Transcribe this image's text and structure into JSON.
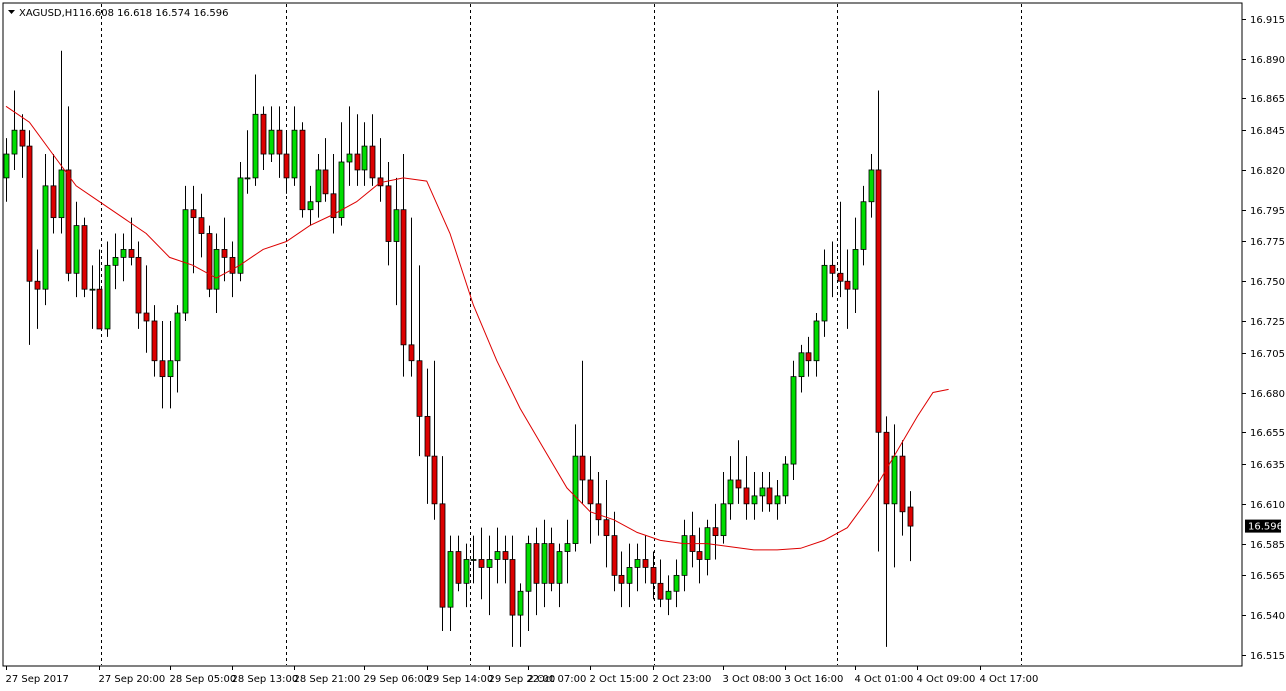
{
  "header": {
    "symbol_label": "XAGUSD,H1",
    "ohlc_label": "16.608 16.618 16.574 16.596"
  },
  "current_price_label": "16.596",
  "colors": {
    "background": "#ffffff",
    "bull": "#00dd00",
    "bear": "#dd0000",
    "wick": "#000000",
    "ma_line": "#dd0000",
    "grid": "#000000",
    "price_tag_bg": "#000000"
  },
  "chart_data": {
    "type": "candlestick",
    "symbol": "XAGUSD",
    "timeframe": "H1",
    "ylim": [
      16.508,
      16.925
    ],
    "y_ticks": [
      16.915,
      16.89,
      16.865,
      16.845,
      16.82,
      16.795,
      16.775,
      16.75,
      16.725,
      16.705,
      16.68,
      16.655,
      16.635,
      16.61,
      16.585,
      16.565,
      16.54,
      16.515
    ],
    "x_tick_labels": [
      {
        "index": 0,
        "label": "27 Sep 2017"
      },
      {
        "index": 12,
        "label": "27 Sep 20:00"
      },
      {
        "index": 21,
        "label": "28 Sep 05:00"
      },
      {
        "index": 29,
        "label": "28 Sep 13:00"
      },
      {
        "index": 37,
        "label": "28 Sep 21:00"
      },
      {
        "index": 46,
        "label": "29 Sep 06:00"
      },
      {
        "index": 54,
        "label": "29 Sep 14:00"
      },
      {
        "index": 62,
        "label": "29 Sep 22:00"
      },
      {
        "index": 67,
        "label": "2 Oct 07:00"
      },
      {
        "index": 75,
        "label": "2 Oct 15:00"
      },
      {
        "index": 83,
        "label": "2 Oct 23:00"
      },
      {
        "index": 92,
        "label": "3 Oct 08:00"
      },
      {
        "index": 100,
        "label": "3 Oct 16:00"
      },
      {
        "index": 109,
        "label": "4 Oct 01:00"
      },
      {
        "index": 117,
        "label": "4 Oct 09:00"
      },
      {
        "index": 125,
        "label": "4 Oct 17:00"
      }
    ],
    "separators": [
      12,
      36,
      60,
      84,
      108,
      132
    ],
    "candles": [
      [
        16.815,
        16.84,
        16.8,
        16.83
      ],
      [
        16.83,
        16.87,
        16.82,
        16.845
      ],
      [
        16.845,
        16.855,
        16.815,
        16.835
      ],
      [
        16.835,
        16.845,
        16.71,
        16.75
      ],
      [
        16.75,
        16.77,
        16.72,
        16.745
      ],
      [
        16.745,
        16.83,
        16.735,
        16.81
      ],
      [
        16.81,
        16.83,
        16.78,
        16.79
      ],
      [
        16.79,
        16.895,
        16.78,
        16.82
      ],
      [
        16.82,
        16.86,
        16.75,
        16.755
      ],
      [
        16.755,
        16.8,
        16.74,
        16.785
      ],
      [
        16.785,
        16.79,
        16.74,
        16.745
      ],
      [
        16.745,
        16.76,
        16.72,
        16.745
      ],
      [
        16.745,
        16.77,
        16.72,
        16.72
      ],
      [
        16.72,
        16.775,
        16.715,
        16.76
      ],
      [
        16.76,
        16.78,
        16.745,
        16.765
      ],
      [
        16.765,
        16.78,
        16.75,
        16.77
      ],
      [
        16.77,
        16.79,
        16.76,
        16.765
      ],
      [
        16.765,
        16.775,
        16.72,
        16.73
      ],
      [
        16.73,
        16.76,
        16.705,
        16.725
      ],
      [
        16.725,
        16.735,
        16.69,
        16.7
      ],
      [
        16.7,
        16.725,
        16.67,
        16.69
      ],
      [
        16.69,
        16.725,
        16.67,
        16.7
      ],
      [
        16.7,
        16.735,
        16.68,
        16.73
      ],
      [
        16.73,
        16.81,
        16.725,
        16.795
      ],
      [
        16.795,
        16.81,
        16.755,
        16.79
      ],
      [
        16.79,
        16.805,
        16.765,
        16.78
      ],
      [
        16.78,
        16.785,
        16.74,
        16.745
      ],
      [
        16.745,
        16.78,
        16.73,
        16.77
      ],
      [
        16.77,
        16.79,
        16.75,
        16.765
      ],
      [
        16.765,
        16.775,
        16.74,
        16.755
      ],
      [
        16.755,
        16.825,
        16.75,
        16.815
      ],
      [
        16.815,
        16.845,
        16.805,
        16.815
      ],
      [
        16.815,
        16.88,
        16.81,
        16.855
      ],
      [
        16.855,
        16.86,
        16.82,
        16.83
      ],
      [
        16.83,
        16.86,
        16.825,
        16.845
      ],
      [
        16.845,
        16.86,
        16.815,
        16.83
      ],
      [
        16.83,
        16.845,
        16.805,
        16.815
      ],
      [
        16.815,
        16.86,
        16.81,
        16.845
      ],
      [
        16.845,
        16.85,
        16.79,
        16.795
      ],
      [
        16.795,
        16.81,
        16.785,
        16.8
      ],
      [
        16.8,
        16.83,
        16.79,
        16.82
      ],
      [
        16.82,
        16.84,
        16.8,
        16.805
      ],
      [
        16.805,
        16.83,
        16.78,
        16.79
      ],
      [
        16.79,
        16.85,
        16.785,
        16.825
      ],
      [
        16.825,
        16.86,
        16.81,
        16.83
      ],
      [
        16.83,
        16.855,
        16.81,
        16.82
      ],
      [
        16.82,
        16.85,
        16.81,
        16.835
      ],
      [
        16.835,
        16.855,
        16.81,
        16.815
      ],
      [
        16.815,
        16.84,
        16.8,
        16.81
      ],
      [
        16.81,
        16.825,
        16.76,
        16.775
      ],
      [
        16.775,
        16.815,
        16.735,
        16.795
      ],
      [
        16.795,
        16.83,
        16.69,
        16.71
      ],
      [
        16.71,
        16.79,
        16.69,
        16.7
      ],
      [
        16.7,
        16.76,
        16.64,
        16.665
      ],
      [
        16.665,
        16.695,
        16.61,
        16.64
      ],
      [
        16.64,
        16.7,
        16.6,
        16.61
      ],
      [
        16.61,
        16.64,
        16.53,
        16.545
      ],
      [
        16.545,
        16.59,
        16.53,
        16.58
      ],
      [
        16.58,
        16.59,
        16.555,
        16.56
      ],
      [
        16.56,
        16.585,
        16.545,
        16.575
      ],
      [
        16.575,
        16.59,
        16.56,
        16.575
      ],
      [
        16.575,
        16.595,
        16.55,
        16.57
      ],
      [
        16.57,
        16.59,
        16.54,
        16.575
      ],
      [
        16.575,
        16.595,
        16.56,
        16.58
      ],
      [
        16.58,
        16.59,
        16.56,
        16.575
      ],
      [
        16.575,
        16.59,
        16.52,
        16.54
      ],
      [
        16.54,
        16.56,
        16.52,
        16.555
      ],
      [
        16.555,
        16.59,
        16.53,
        16.585
      ],
      [
        16.585,
        16.595,
        16.54,
        16.56
      ],
      [
        16.56,
        16.6,
        16.545,
        16.585
      ],
      [
        16.585,
        16.595,
        16.555,
        16.56
      ],
      [
        16.56,
        16.585,
        16.545,
        16.58
      ],
      [
        16.58,
        16.6,
        16.56,
        16.585
      ],
      [
        16.585,
        16.66,
        16.58,
        16.64
      ],
      [
        16.64,
        16.7,
        16.61,
        16.625
      ],
      [
        16.625,
        16.64,
        16.585,
        16.61
      ],
      [
        16.61,
        16.63,
        16.59,
        16.6
      ],
      [
        16.6,
        16.625,
        16.57,
        16.59
      ],
      [
        16.59,
        16.605,
        16.555,
        16.565
      ],
      [
        16.565,
        16.58,
        16.545,
        16.56
      ],
      [
        16.56,
        16.585,
        16.545,
        16.57
      ],
      [
        16.57,
        16.585,
        16.555,
        16.575
      ],
      [
        16.575,
        16.59,
        16.56,
        16.57
      ],
      [
        16.57,
        16.58,
        16.55,
        16.56
      ],
      [
        16.56,
        16.575,
        16.545,
        16.55
      ],
      [
        16.55,
        16.565,
        16.54,
        16.555
      ],
      [
        16.555,
        16.575,
        16.545,
        16.565
      ],
      [
        16.565,
        16.6,
        16.555,
        16.59
      ],
      [
        16.59,
        16.605,
        16.57,
        16.58
      ],
      [
        16.58,
        16.595,
        16.56,
        16.575
      ],
      [
        16.575,
        16.6,
        16.565,
        16.595
      ],
      [
        16.595,
        16.61,
        16.575,
        16.59
      ],
      [
        16.59,
        16.63,
        16.585,
        16.61
      ],
      [
        16.61,
        16.64,
        16.6,
        16.625
      ],
      [
        16.625,
        16.65,
        16.61,
        16.62
      ],
      [
        16.62,
        16.64,
        16.6,
        16.61
      ],
      [
        16.61,
        16.63,
        16.6,
        16.615
      ],
      [
        16.615,
        16.63,
        16.605,
        16.62
      ],
      [
        16.62,
        16.63,
        16.605,
        16.61
      ],
      [
        16.61,
        16.625,
        16.6,
        16.615
      ],
      [
        16.615,
        16.64,
        16.61,
        16.635
      ],
      [
        16.635,
        16.7,
        16.625,
        16.69
      ],
      [
        16.69,
        16.71,
        16.68,
        16.705
      ],
      [
        16.705,
        16.715,
        16.69,
        16.7
      ],
      [
        16.7,
        16.73,
        16.69,
        16.725
      ],
      [
        16.725,
        16.77,
        16.715,
        16.76
      ],
      [
        16.76,
        16.775,
        16.74,
        16.755
      ],
      [
        16.755,
        16.8,
        16.74,
        16.75
      ],
      [
        16.75,
        16.77,
        16.72,
        16.745
      ],
      [
        16.745,
        16.79,
        16.73,
        16.77
      ],
      [
        16.77,
        16.81,
        16.76,
        16.8
      ],
      [
        16.8,
        16.83,
        16.79,
        16.82
      ],
      [
        16.82,
        16.87,
        16.58,
        16.655
      ],
      [
        16.655,
        16.665,
        16.52,
        16.61
      ],
      [
        16.61,
        16.66,
        16.57,
        16.64
      ],
      [
        16.64,
        16.65,
        16.59,
        16.605
      ],
      [
        16.608,
        16.618,
        16.574,
        16.596
      ]
    ],
    "ma_period": 24,
    "ma_points": [
      [
        0,
        16.86
      ],
      [
        3,
        16.85
      ],
      [
        6,
        16.83
      ],
      [
        9,
        16.81
      ],
      [
        12,
        16.8
      ],
      [
        15,
        16.79
      ],
      [
        18,
        16.78
      ],
      [
        21,
        16.765
      ],
      [
        24,
        16.76
      ],
      [
        27,
        16.752
      ],
      [
        30,
        16.76
      ],
      [
        33,
        16.77
      ],
      [
        36,
        16.775
      ],
      [
        39,
        16.785
      ],
      [
        42,
        16.792
      ],
      [
        45,
        16.8
      ],
      [
        48,
        16.812
      ],
      [
        51,
        16.815
      ],
      [
        54,
        16.813
      ],
      [
        57,
        16.78
      ],
      [
        60,
        16.735
      ],
      [
        63,
        16.7
      ],
      [
        66,
        16.67
      ],
      [
        69,
        16.645
      ],
      [
        72,
        16.62
      ],
      [
        75,
        16.605
      ],
      [
        78,
        16.6
      ],
      [
        81,
        16.592
      ],
      [
        84,
        16.587
      ],
      [
        87,
        16.585
      ],
      [
        90,
        16.585
      ],
      [
        93,
        16.583
      ],
      [
        96,
        16.581
      ],
      [
        99,
        16.581
      ],
      [
        102,
        16.582
      ],
      [
        105,
        16.587
      ],
      [
        108,
        16.595
      ],
      [
        111,
        16.615
      ],
      [
        114,
        16.64
      ],
      [
        117,
        16.665
      ],
      [
        119,
        16.68
      ],
      [
        121,
        16.682
      ]
    ]
  }
}
